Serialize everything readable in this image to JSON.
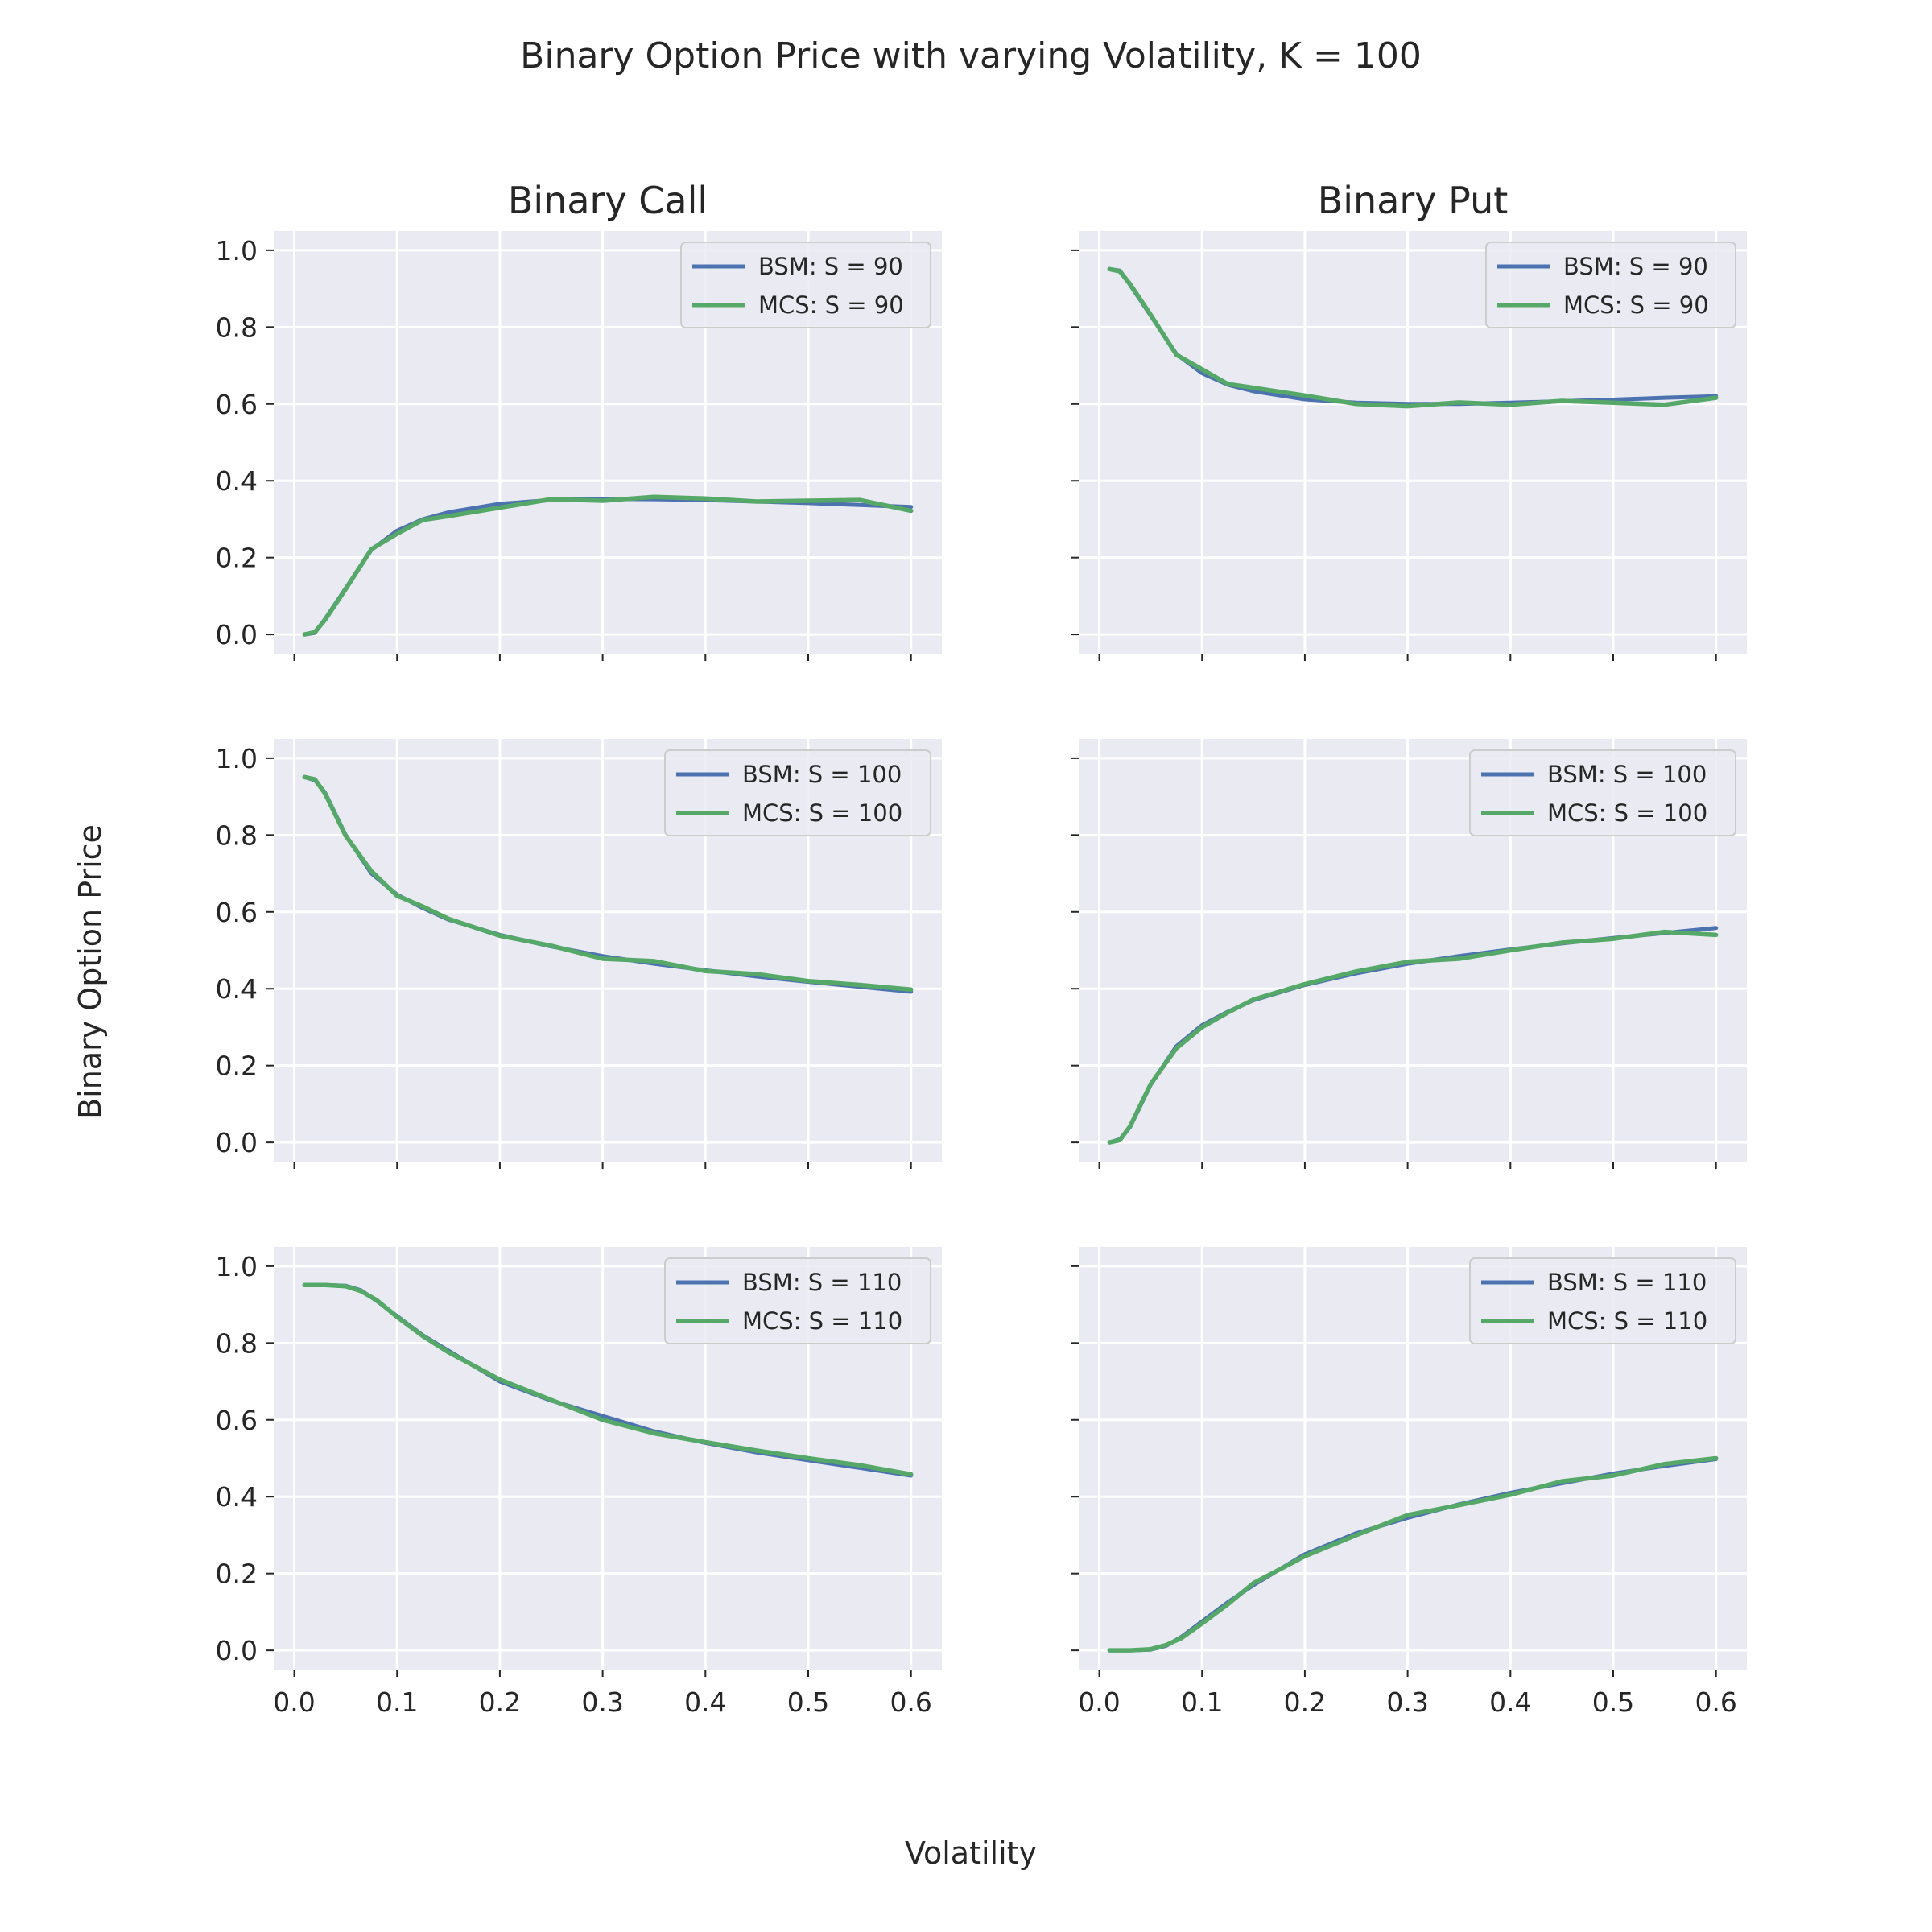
{
  "figure": {
    "title": "Binary Option Price with varying Volatility, K = 100",
    "xlabel": "Volatility",
    "ylabel": "Binary Option Price",
    "column_titles": [
      "Binary Call",
      "Binary Put"
    ],
    "colors": {
      "bsm": "#4c72b0",
      "mcs": "#55a868",
      "axes_bg": "#eaeaf2",
      "grid": "#ffffff"
    }
  },
  "chart_data": [
    {
      "type": "line",
      "panel": "call-s90",
      "row": 0,
      "col": 0,
      "title": "Binary Call",
      "xlim": [
        -0.02,
        0.63
      ],
      "ylim": [
        -0.05,
        1.05
      ],
      "xticks": [
        0.0,
        0.1,
        0.2,
        0.3,
        0.4,
        0.5,
        0.6
      ],
      "yticks": [
        0.0,
        0.2,
        0.4,
        0.6,
        0.8,
        1.0
      ],
      "legend": "top-right",
      "grid": true,
      "x": [
        0.01,
        0.02,
        0.03,
        0.05,
        0.075,
        0.1,
        0.125,
        0.15,
        0.2,
        0.25,
        0.3,
        0.35,
        0.4,
        0.45,
        0.5,
        0.55,
        0.6
      ],
      "series": [
        {
          "name": "BSM: S = 90",
          "values": [
            0.0,
            0.004,
            0.04,
            0.12,
            0.22,
            0.27,
            0.3,
            0.318,
            0.34,
            0.35,
            0.353,
            0.352,
            0.35,
            0.346,
            0.342,
            0.337,
            0.332
          ]
        },
        {
          "name": "MCS: S = 90",
          "values": [
            0.0,
            0.006,
            0.038,
            0.118,
            0.222,
            0.262,
            0.298,
            0.308,
            0.33,
            0.352,
            0.348,
            0.358,
            0.354,
            0.346,
            0.348,
            0.35,
            0.322
          ]
        }
      ]
    },
    {
      "type": "line",
      "panel": "put-s90",
      "row": 0,
      "col": 1,
      "xlim": [
        -0.02,
        0.63
      ],
      "ylim": [
        -0.05,
        1.05
      ],
      "xticks": [
        0.0,
        0.1,
        0.2,
        0.3,
        0.4,
        0.5,
        0.6
      ],
      "yticks": [
        0.0,
        0.2,
        0.4,
        0.6,
        0.8,
        1.0
      ],
      "legend": "top-right",
      "grid": true,
      "x": [
        0.01,
        0.02,
        0.03,
        0.05,
        0.075,
        0.1,
        0.125,
        0.15,
        0.2,
        0.25,
        0.3,
        0.35,
        0.4,
        0.45,
        0.5,
        0.55,
        0.6
      ],
      "series": [
        {
          "name": "BSM: S = 90",
          "values": [
            0.951,
            0.947,
            0.91,
            0.83,
            0.73,
            0.68,
            0.65,
            0.633,
            0.612,
            0.603,
            0.6,
            0.6,
            0.603,
            0.607,
            0.611,
            0.616,
            0.62
          ]
        },
        {
          "name": "MCS: S = 90",
          "values": [
            0.951,
            0.945,
            0.912,
            0.832,
            0.728,
            0.69,
            0.652,
            0.642,
            0.622,
            0.6,
            0.594,
            0.604,
            0.598,
            0.608,
            0.603,
            0.598,
            0.616
          ]
        }
      ]
    },
    {
      "type": "line",
      "panel": "call-s100",
      "row": 1,
      "col": 0,
      "xlim": [
        -0.02,
        0.63
      ],
      "ylim": [
        -0.05,
        1.05
      ],
      "xticks": [
        0.0,
        0.1,
        0.2,
        0.3,
        0.4,
        0.5,
        0.6
      ],
      "yticks": [
        0.0,
        0.2,
        0.4,
        0.6,
        0.8,
        1.0
      ],
      "legend": "top-right",
      "grid": true,
      "x": [
        0.01,
        0.02,
        0.03,
        0.05,
        0.075,
        0.1,
        0.125,
        0.15,
        0.2,
        0.25,
        0.3,
        0.35,
        0.4,
        0.45,
        0.5,
        0.55,
        0.6
      ],
      "series": [
        {
          "name": "BSM: S = 100",
          "values": [
            0.951,
            0.943,
            0.91,
            0.8,
            0.7,
            0.645,
            0.61,
            0.58,
            0.54,
            0.51,
            0.485,
            0.465,
            0.448,
            0.432,
            0.418,
            0.405,
            0.392
          ]
        },
        {
          "name": "MCS: S = 100",
          "values": [
            0.951,
            0.945,
            0.908,
            0.798,
            0.706,
            0.642,
            0.614,
            0.582,
            0.538,
            0.512,
            0.478,
            0.472,
            0.446,
            0.438,
            0.42,
            0.41,
            0.398
          ]
        }
      ]
    },
    {
      "type": "line",
      "panel": "put-s100",
      "row": 1,
      "col": 1,
      "xlim": [
        -0.02,
        0.63
      ],
      "ylim": [
        -0.05,
        1.05
      ],
      "xticks": [
        0.0,
        0.1,
        0.2,
        0.3,
        0.4,
        0.5,
        0.6
      ],
      "yticks": [
        0.0,
        0.2,
        0.4,
        0.6,
        0.8,
        1.0
      ],
      "legend": "top-right",
      "grid": true,
      "x": [
        0.01,
        0.02,
        0.03,
        0.05,
        0.075,
        0.1,
        0.125,
        0.15,
        0.2,
        0.25,
        0.3,
        0.35,
        0.4,
        0.45,
        0.5,
        0.55,
        0.6
      ],
      "series": [
        {
          "name": "BSM: S = 100",
          "values": [
            0.0,
            0.008,
            0.04,
            0.15,
            0.25,
            0.305,
            0.34,
            0.37,
            0.41,
            0.44,
            0.465,
            0.485,
            0.502,
            0.518,
            0.532,
            0.545,
            0.558
          ]
        },
        {
          "name": "MCS: S = 100",
          "values": [
            0.0,
            0.006,
            0.042,
            0.152,
            0.245,
            0.3,
            0.338,
            0.372,
            0.412,
            0.445,
            0.47,
            0.478,
            0.5,
            0.52,
            0.53,
            0.548,
            0.54
          ]
        }
      ]
    },
    {
      "type": "line",
      "panel": "call-s110",
      "row": 2,
      "col": 0,
      "xlim": [
        -0.02,
        0.63
      ],
      "ylim": [
        -0.05,
        1.05
      ],
      "xticks": [
        0.0,
        0.1,
        0.2,
        0.3,
        0.4,
        0.5,
        0.6
      ],
      "yticks": [
        0.0,
        0.2,
        0.4,
        0.6,
        0.8,
        1.0
      ],
      "legend": "top-right",
      "grid": true,
      "x": [
        0.01,
        0.03,
        0.05,
        0.065,
        0.08,
        0.1,
        0.125,
        0.15,
        0.2,
        0.25,
        0.3,
        0.35,
        0.4,
        0.45,
        0.5,
        0.55,
        0.6
      ],
      "series": [
        {
          "name": "BSM: S = 110",
          "values": [
            0.951,
            0.951,
            0.949,
            0.937,
            0.91,
            0.87,
            0.82,
            0.78,
            0.7,
            0.65,
            0.61,
            0.57,
            0.54,
            0.515,
            0.495,
            0.475,
            0.455
          ]
        },
        {
          "name": "MCS: S = 110",
          "values": [
            0.951,
            0.951,
            0.948,
            0.935,
            0.912,
            0.868,
            0.818,
            0.776,
            0.705,
            0.652,
            0.6,
            0.565,
            0.542,
            0.52,
            0.5,
            0.482,
            0.458
          ]
        }
      ]
    },
    {
      "type": "line",
      "panel": "put-s110",
      "row": 2,
      "col": 1,
      "xlim": [
        -0.02,
        0.63
      ],
      "ylim": [
        -0.05,
        1.05
      ],
      "xticks": [
        0.0,
        0.1,
        0.2,
        0.3,
        0.4,
        0.5,
        0.6
      ],
      "yticks": [
        0.0,
        0.2,
        0.4,
        0.6,
        0.8,
        1.0
      ],
      "legend": "top-right",
      "grid": true,
      "x": [
        0.01,
        0.03,
        0.05,
        0.065,
        0.08,
        0.1,
        0.125,
        0.15,
        0.2,
        0.25,
        0.3,
        0.35,
        0.4,
        0.45,
        0.5,
        0.55,
        0.6
      ],
      "series": [
        {
          "name": "BSM: S = 110",
          "values": [
            0.0,
            0.0,
            0.002,
            0.012,
            0.035,
            0.075,
            0.125,
            0.17,
            0.25,
            0.305,
            0.345,
            0.38,
            0.41,
            0.435,
            0.46,
            0.48,
            0.498
          ]
        },
        {
          "name": "MCS: S = 110",
          "values": [
            0.0,
            0.0,
            0.003,
            0.014,
            0.032,
            0.07,
            0.12,
            0.175,
            0.245,
            0.3,
            0.352,
            0.378,
            0.405,
            0.44,
            0.455,
            0.485,
            0.5
          ]
        }
      ]
    }
  ]
}
